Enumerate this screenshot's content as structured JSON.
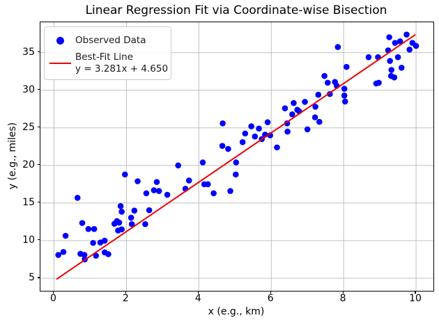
{
  "title": "Linear Regression Fit via Coordinate-wise Bisection",
  "axes": {
    "xlabel": "x (e.g., km)",
    "ylabel": "y (e.g., miles)"
  },
  "legend": {
    "observed_label": "Observed Data",
    "fit_label": "Best-Fit Line",
    "fit_equation": "y = 3.281x + 4.650"
  },
  "colors": {
    "scatter": "#0000ff",
    "fit_line": "#ee0000",
    "grid": "#b8b8b8",
    "spine": "#000000"
  },
  "chart_data": {
    "type": "scatter",
    "title": "Linear Regression Fit via Coordinate-wise Bisection",
    "xlabel": "x (e.g., km)",
    "ylabel": "y (e.g., miles)",
    "xlim": [
      -0.375,
      10.48
    ],
    "ylim": [
      3.33,
      39.04
    ],
    "x_ticks": [
      0,
      2,
      4,
      6,
      8,
      10
    ],
    "y_ticks": [
      5,
      10,
      15,
      20,
      25,
      30,
      35
    ],
    "grid": true,
    "legend_position": "upper left",
    "series": [
      {
        "name": "Observed Data",
        "kind": "scatter",
        "color": "#0000ff",
        "marker_radius": 4.3,
        "points": [
          [
            0.12,
            8.1
          ],
          [
            0.26,
            8.5
          ],
          [
            0.32,
            10.65
          ],
          [
            0.65,
            15.7
          ],
          [
            0.73,
            8.25
          ],
          [
            0.84,
            8.1
          ],
          [
            0.85,
            7.5
          ],
          [
            0.78,
            12.35
          ],
          [
            0.95,
            11.55
          ],
          [
            1.11,
            11.55
          ],
          [
            1.08,
            9.7
          ],
          [
            1.28,
            9.75
          ],
          [
            1.4,
            10.0
          ],
          [
            1.16,
            8.0
          ],
          [
            1.4,
            8.45
          ],
          [
            1.5,
            8.2
          ],
          [
            1.67,
            12.25
          ],
          [
            1.8,
            12.4
          ],
          [
            1.87,
            11.5
          ],
          [
            1.77,
            11.35
          ],
          [
            1.74,
            12.6
          ],
          [
            1.84,
            14.6
          ],
          [
            1.87,
            13.85
          ],
          [
            1.96,
            18.8
          ],
          [
            2.15,
            12.2
          ],
          [
            2.22,
            14.0
          ],
          [
            2.31,
            17.9
          ],
          [
            2.52,
            12.2
          ],
          [
            2.13,
            13.05
          ],
          [
            2.63,
            14.05
          ],
          [
            2.55,
            16.3
          ],
          [
            2.76,
            16.7
          ],
          [
            2.9,
            16.6
          ],
          [
            2.84,
            17.8
          ],
          [
            3.13,
            16.1
          ],
          [
            3.43,
            20.0
          ],
          [
            3.63,
            16.9
          ],
          [
            3.73,
            18.0
          ],
          [
            4.11,
            20.4
          ],
          [
            4.15,
            17.5
          ],
          [
            4.25,
            17.5
          ],
          [
            4.41,
            16.3
          ],
          [
            4.87,
            16.6
          ],
          [
            4.66,
            25.6
          ],
          [
            4.65,
            22.6
          ],
          [
            4.81,
            22.2
          ],
          [
            5.03,
            20.4
          ],
          [
            5.02,
            18.8
          ],
          [
            5.21,
            23.1
          ],
          [
            5.28,
            24.25
          ],
          [
            5.45,
            25.2
          ],
          [
            5.55,
            23.85
          ],
          [
            5.66,
            24.9
          ],
          [
            5.74,
            23.5
          ],
          [
            5.83,
            24.1
          ],
          [
            5.9,
            25.75
          ],
          [
            5.97,
            24.0
          ],
          [
            6.16,
            22.4
          ],
          [
            6.44,
            25.6
          ],
          [
            6.45,
            24.5
          ],
          [
            6.38,
            27.6
          ],
          [
            6.58,
            26.8
          ],
          [
            6.62,
            28.3
          ],
          [
            6.72,
            27.4
          ],
          [
            6.77,
            27.2
          ],
          [
            6.93,
            28.45
          ],
          [
            7.0,
            24.8
          ],
          [
            7.21,
            26.4
          ],
          [
            7.33,
            25.8
          ],
          [
            7.22,
            27.8
          ],
          [
            7.3,
            29.4
          ],
          [
            7.47,
            31.9
          ],
          [
            7.56,
            31.0
          ],
          [
            7.62,
            29.5
          ],
          [
            7.76,
            31.1
          ],
          [
            7.81,
            30.6
          ],
          [
            7.84,
            35.75
          ],
          [
            8.02,
            30.2
          ],
          [
            8.02,
            29.3
          ],
          [
            8.04,
            28.5
          ],
          [
            8.08,
            33.1
          ],
          [
            8.69,
            34.4
          ],
          [
            8.95,
            34.4
          ],
          [
            8.9,
            30.9
          ],
          [
            9.26,
            37.05
          ],
          [
            9.74,
            37.4
          ],
          [
            9.42,
            36.3
          ],
          [
            9.56,
            36.5
          ],
          [
            9.9,
            36.3
          ],
          [
            10.0,
            35.9
          ],
          [
            9.23,
            35.3
          ],
          [
            9.82,
            35.4
          ],
          [
            9.5,
            34.4
          ],
          [
            9.28,
            33.9
          ],
          [
            9.6,
            33.0
          ],
          [
            9.32,
            32.7
          ],
          [
            9.31,
            31.9
          ],
          [
            9.4,
            31.7
          ],
          [
            8.97,
            31.0
          ]
        ]
      },
      {
        "name": "Best-Fit Line",
        "kind": "line",
        "color": "#ee0000",
        "width": 2,
        "slope": 3.281,
        "intercept": 4.65,
        "equation": "y = 3.281x + 4.650",
        "x_range": [
          0.08,
          9.97
        ]
      }
    ]
  }
}
